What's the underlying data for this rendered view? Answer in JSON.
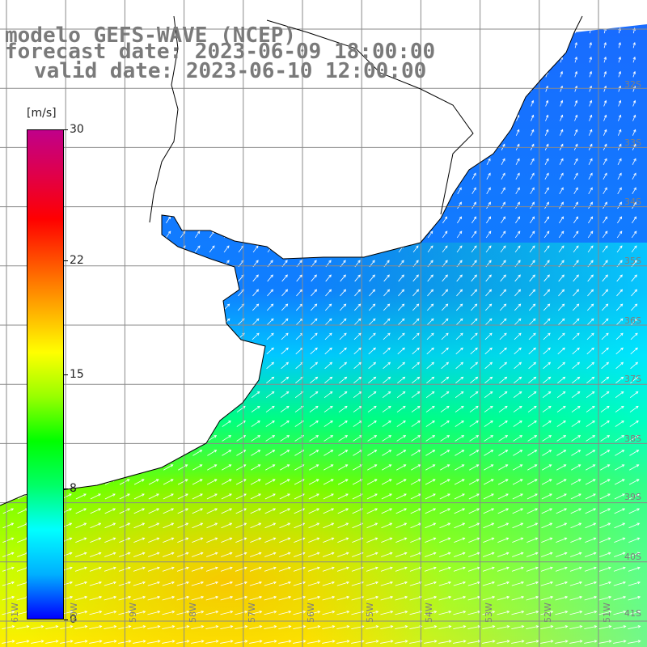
{
  "title": {
    "line1": "modelo GEFS-WAVE (NCEP)",
    "line2": "forecast date: 2023-06-09 18:00:00",
    "line3": "valid date: 2023-06-10 12:00:00"
  },
  "colorbar": {
    "unit": "[m/s]",
    "min": 0,
    "max": 30,
    "ticks": [
      "30",
      "22",
      "15",
      "8",
      "0"
    ],
    "tick_values": [
      30,
      22,
      15,
      8,
      0
    ],
    "colors": [
      "#0000ff",
      "#00b0ff",
      "#00ffff",
      "#00ff66",
      "#00ff00",
      "#99ff00",
      "#ffff00",
      "#ffaa00",
      "#ff5500",
      "#ff0000",
      "#e0004a",
      "#c0008a"
    ]
  },
  "grid": {
    "lat_labels": [
      "32S",
      "33S",
      "34S",
      "35S",
      "36S",
      "37S",
      "38S",
      "39S",
      "40S",
      "41S"
    ],
    "lon_labels": [
      "61W",
      "60W",
      "59W",
      "58W",
      "57W",
      "56W",
      "55W",
      "54W",
      "53W",
      "52W",
      "51W"
    ]
  },
  "map_data": {
    "type": "wind_field",
    "variable": "wind speed",
    "units": "m/s",
    "region": "Rio de la Plata / South Atlantic",
    "lat_range": [
      "31S",
      "41S"
    ],
    "lon_range": [
      "61W",
      "50W"
    ],
    "land_color": "#ffffff",
    "coastline_color": "#000000",
    "arrow_color": "#ffffff"
  }
}
